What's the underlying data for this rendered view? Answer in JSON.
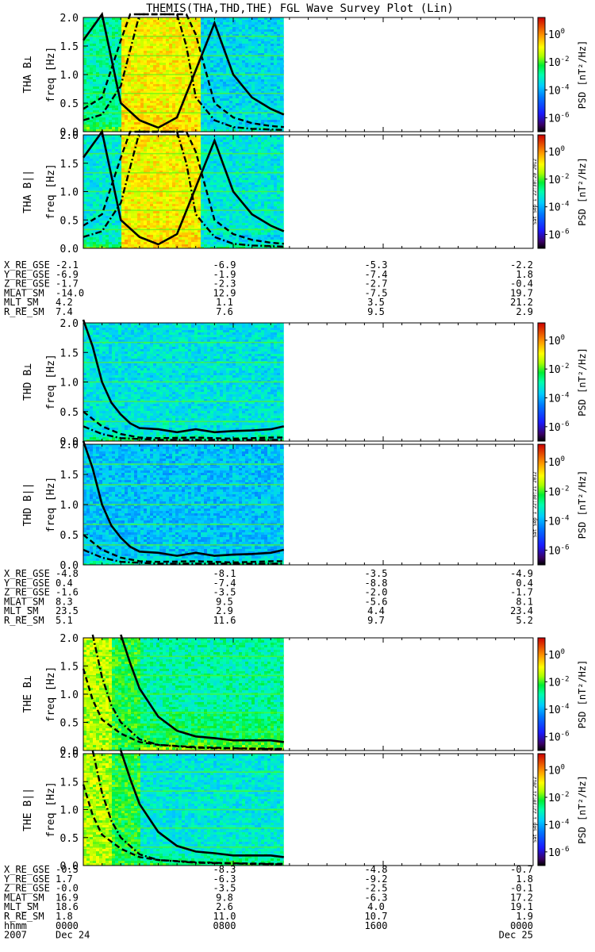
{
  "title": "THEMIS(THA,THD,THE) FGL Wave Survey Plot (Lin)",
  "ylabel_unit": "freq [Hz]",
  "colorbar": {
    "label": "PSD [nT²/Hz]",
    "ticks": [
      {
        "base": "10",
        "exp": "0",
        "value": 0
      },
      {
        "base": "10",
        "exp": "-2",
        "value": -2
      },
      {
        "base": "10",
        "exp": "-4",
        "value": -4
      },
      {
        "base": "10",
        "exp": "-6",
        "value": -6
      }
    ],
    "range": [
      -7,
      1.2
    ]
  },
  "stamps": [
    "Sat Sep 1 22:30:20 2012",
    "Sat Sep 1 22:30:21 2012",
    "Sat Sep 1 22:30:21 2012"
  ],
  "chart_data": {
    "type": "heatmap",
    "x_range_hours": [
      0,
      24
    ],
    "ylim": [
      0,
      2.0
    ],
    "yticks": [
      "0.0",
      "0.5",
      "1.0",
      "1.5",
      "2.0"
    ],
    "yticks_values": [
      0,
      0.5,
      1.0,
      1.5,
      2.0
    ],
    "data_end_hour": 10.7,
    "panels": [
      {
        "ylabel": "THA B⊥",
        "probe": 0,
        "pol": "perp"
      },
      {
        "ylabel": "THA B||",
        "probe": 0,
        "pol": "par"
      },
      {
        "ylabel": "THD B⊥",
        "probe": 1,
        "pol": "perp"
      },
      {
        "ylabel": "THD B||",
        "probe": 1,
        "pol": "par"
      },
      {
        "ylabel": "THE B⊥",
        "probe": 2,
        "pol": "perp"
      },
      {
        "ylabel": "THE B||",
        "probe": 2,
        "pol": "par"
      }
    ],
    "curves_hz": {
      "probe0": {
        "solid": [
          [
            0.0,
            1.6
          ],
          [
            1.0,
            2.4
          ],
          [
            2.0,
            0.5
          ],
          [
            3.0,
            0.2
          ],
          [
            4.0,
            0.07
          ],
          [
            5.0,
            0.25
          ],
          [
            7.0,
            1.9
          ],
          [
            8.0,
            1.0
          ],
          [
            9.0,
            0.6
          ],
          [
            10.0,
            0.4
          ],
          [
            10.7,
            0.3
          ]
        ],
        "dashed": [
          [
            0.0,
            0.4
          ],
          [
            1.0,
            0.6
          ],
          [
            2.0,
            1.6
          ],
          [
            2.5,
            2.2
          ],
          [
            5.5,
            2.2
          ],
          [
            6.0,
            1.7
          ],
          [
            7.0,
            0.5
          ],
          [
            8.0,
            0.25
          ],
          [
            9.0,
            0.15
          ],
          [
            10.0,
            0.1
          ],
          [
            10.7,
            0.08
          ]
        ],
        "dashdot": [
          [
            0.0,
            0.2
          ],
          [
            1.0,
            0.3
          ],
          [
            2.0,
            0.8
          ],
          [
            3.0,
            2.2
          ],
          [
            5.0,
            2.2
          ],
          [
            5.5,
            1.5
          ],
          [
            6.0,
            0.6
          ],
          [
            7.0,
            0.2
          ],
          [
            8.0,
            0.08
          ],
          [
            9.0,
            0.05
          ],
          [
            10.7,
            0.03
          ]
        ]
      },
      "probe1": {
        "solid": [
          [
            0.0,
            2.1
          ],
          [
            0.5,
            1.6
          ],
          [
            1.0,
            1.0
          ],
          [
            1.5,
            0.65
          ],
          [
            2.0,
            0.45
          ],
          [
            2.5,
            0.3
          ],
          [
            3.0,
            0.22
          ],
          [
            4.0,
            0.2
          ],
          [
            5.0,
            0.15
          ],
          [
            6.0,
            0.2
          ],
          [
            7.0,
            0.15
          ],
          [
            8.0,
            0.17
          ],
          [
            9.0,
            0.18
          ],
          [
            10.0,
            0.2
          ],
          [
            10.7,
            0.25
          ]
        ],
        "dashed": [
          [
            0.0,
            0.5
          ],
          [
            1.0,
            0.25
          ],
          [
            2.0,
            0.12
          ],
          [
            3.0,
            0.06
          ],
          [
            4.0,
            0.05
          ],
          [
            6.0,
            0.06
          ],
          [
            8.0,
            0.04
          ],
          [
            10.0,
            0.06
          ],
          [
            10.7,
            0.06
          ]
        ],
        "dashdot": [
          [
            0.0,
            0.25
          ],
          [
            1.0,
            0.12
          ],
          [
            2.0,
            0.05
          ],
          [
            4.0,
            0.02
          ],
          [
            10.7,
            0.02
          ]
        ]
      },
      "probe2": {
        "solid": [
          [
            2.0,
            2.2
          ],
          [
            2.5,
            1.55
          ],
          [
            3.0,
            1.1
          ],
          [
            4.0,
            0.6
          ],
          [
            5.0,
            0.35
          ],
          [
            6.0,
            0.25
          ],
          [
            7.0,
            0.22
          ],
          [
            8.0,
            0.18
          ],
          [
            9.0,
            0.18
          ],
          [
            10.0,
            0.18
          ],
          [
            10.7,
            0.15
          ]
        ],
        "dashed": [
          [
            0.0,
            1.45
          ],
          [
            0.5,
            0.9
          ],
          [
            1.0,
            0.55
          ],
          [
            2.0,
            0.3
          ],
          [
            3.0,
            0.15
          ],
          [
            4.0,
            0.1
          ],
          [
            6.0,
            0.06
          ],
          [
            8.0,
            0.04
          ],
          [
            10.7,
            0.03
          ]
        ],
        "dashdot": [
          [
            0.5,
            2.2
          ],
          [
            1.0,
            1.3
          ],
          [
            1.5,
            0.8
          ],
          [
            2.0,
            0.5
          ],
          [
            3.0,
            0.2
          ],
          [
            4.0,
            0.1
          ],
          [
            6.0,
            0.05
          ],
          [
            10.7,
            0.02
          ]
        ]
      }
    }
  },
  "ephemeris": [
    {
      "rows": [
        {
          "label": "X_RE_GSE",
          "values": [
            "-2.1",
            "-6.9",
            "-5.3",
            "-2.2"
          ]
        },
        {
          "label": "Y_RE_GSE",
          "values": [
            "-6.9",
            "-1.9",
            "-7.4",
            "1.8"
          ]
        },
        {
          "label": "Z_RE_GSE",
          "values": [
            "-1.7",
            "-2.3",
            "-2.7",
            "-0.4"
          ]
        },
        {
          "label": "MLAT_SM",
          "values": [
            "-14.0",
            "12.9",
            "-7.5",
            "19.7"
          ]
        },
        {
          "label": "MLT_SM",
          "values": [
            "4.2",
            "1.1",
            "3.5",
            "21.2"
          ]
        },
        {
          "label": "R_RE_SM",
          "values": [
            "7.4",
            "7.6",
            "9.5",
            "2.9"
          ]
        }
      ]
    },
    {
      "rows": [
        {
          "label": "X_RE_GSE",
          "values": [
            "-4.8",
            "-8.1",
            "-3.5",
            "-4.9"
          ]
        },
        {
          "label": "Y_RE_GSE",
          "values": [
            "0.4",
            "-7.4",
            "-8.8",
            "0.4"
          ]
        },
        {
          "label": "Z_RE_GSE",
          "values": [
            "-1.6",
            "-3.5",
            "-2.0",
            "-1.7"
          ]
        },
        {
          "label": "MLAT_SM",
          "values": [
            "8.3",
            "9.5",
            "-5.6",
            "8.1"
          ]
        },
        {
          "label": "MLT_SM",
          "values": [
            "23.5",
            "2.9",
            "4.4",
            "23.4"
          ]
        },
        {
          "label": "R_RE_SM",
          "values": [
            "5.1",
            "11.6",
            "9.7",
            "5.2"
          ]
        }
      ]
    },
    {
      "rows": [
        {
          "label": "X_RE_GSE",
          "values": [
            "-0.5",
            "-8.3",
            "-4.8",
            "-0.7"
          ]
        },
        {
          "label": "Y_RE_GSE",
          "values": [
            "1.7",
            "-6.3",
            "-9.2",
            "1.8"
          ]
        },
        {
          "label": "Z_RE_GSE",
          "values": [
            "-0.0",
            "-3.5",
            "-2.5",
            "-0.1"
          ]
        },
        {
          "label": "MLAT_SM",
          "values": [
            "16.9",
            "9.8",
            "-6.3",
            "17.2"
          ]
        },
        {
          "label": "MLT_SM",
          "values": [
            "18.6",
            "2.6",
            "4.0",
            "19.1"
          ]
        },
        {
          "label": "R_RE_SM",
          "values": [
            "1.8",
            "11.0",
            "10.7",
            "1.9"
          ]
        },
        {
          "label": "hhmm",
          "values": [
            "0000",
            "0800",
            "1600",
            "0000"
          ]
        }
      ],
      "dates": {
        "year": "2007",
        "start": "Dec 24",
        "end": "Dec 25"
      }
    }
  ]
}
